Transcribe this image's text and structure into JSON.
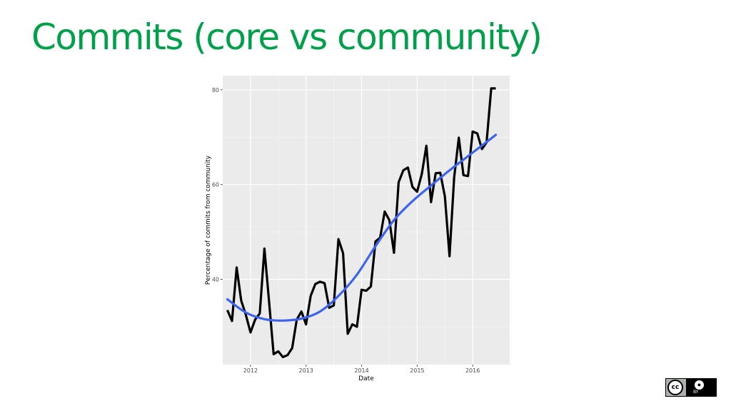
{
  "slide": {
    "title": "Commits (core vs community)"
  },
  "colors": {
    "title": "#00a04a",
    "panel_bg": "#ebebeb",
    "grid_major": "#ffffff",
    "grid_minor": "#f4f4f4",
    "series_line": "#000000",
    "smooth_line": "#3c64ef"
  },
  "license_badge": {
    "cc_text": "cc",
    "by_icon": "person-icon",
    "by_label": "BY"
  },
  "chart_data": {
    "type": "line",
    "xlabel": "Date",
    "ylabel": "Percentage of commits from community",
    "xlim": [
      "2011-07",
      "2016-09"
    ],
    "ylim": [
      22,
      83
    ],
    "x_ticks": [
      "2012",
      "2013",
      "2014",
      "2015",
      "2016"
    ],
    "y_ticks": [
      40,
      60,
      80
    ],
    "grid": true,
    "legend": "none",
    "series": [
      {
        "type": "line",
        "x": [
          "2011-08",
          "2011-09",
          "2011-10",
          "2011-11",
          "2011-12",
          "2012-01",
          "2012-02",
          "2012-03",
          "2012-04",
          "2012-05",
          "2012-06",
          "2012-07",
          "2012-08",
          "2012-09",
          "2012-10",
          "2012-11",
          "2012-12",
          "2013-01",
          "2013-02",
          "2013-03",
          "2013-04",
          "2013-05",
          "2013-06",
          "2013-07",
          "2013-08",
          "2013-09",
          "2013-10",
          "2013-11",
          "2013-12",
          "2014-01",
          "2014-02",
          "2014-03",
          "2014-04",
          "2014-05",
          "2014-06",
          "2014-07",
          "2014-08",
          "2014-09",
          "2014-10",
          "2014-11",
          "2014-12",
          "2015-01",
          "2015-02",
          "2015-03",
          "2015-04",
          "2015-05",
          "2015-06",
          "2015-07",
          "2015-08",
          "2015-09",
          "2015-10",
          "2015-11",
          "2015-12",
          "2016-01",
          "2016-02",
          "2016-03",
          "2016-04",
          "2016-05",
          "2016-06"
        ],
        "y": [
          33.5,
          31.2,
          42.5,
          35.5,
          32.5,
          28.8,
          31.5,
          32.8,
          46.5,
          35.5,
          24.2,
          24.8,
          23.6,
          24.0,
          25.5,
          31.5,
          33.2,
          30.5,
          36.5,
          39.0,
          39.5,
          39.2,
          34.0,
          34.5,
          48.5,
          45.5,
          28.5,
          30.5,
          30.0,
          37.8,
          37.6,
          38.5,
          48.0,
          48.8,
          54.3,
          52.5,
          45.6,
          60.5,
          63.0,
          63.6,
          59.5,
          58.5,
          62.2,
          68.2,
          56.3,
          62.4,
          62.5,
          57.5,
          44.9,
          61.5,
          69.9,
          62.0,
          61.8,
          71.2,
          70.8,
          67.5,
          68.9,
          80.3,
          80.3
        ]
      },
      {
        "type": "smooth",
        "x": [
          "2011-08",
          "2011-12",
          "2012-04",
          "2012-08",
          "2012-12",
          "2013-04",
          "2013-08",
          "2013-12",
          "2014-04",
          "2014-08",
          "2014-12",
          "2015-04",
          "2015-08",
          "2015-12",
          "2016-04",
          "2016-06"
        ],
        "y": [
          35.8,
          33.0,
          31.6,
          31.3,
          31.7,
          33.2,
          36.5,
          41.0,
          47.0,
          52.5,
          56.5,
          59.8,
          63.0,
          66.0,
          69.0,
          70.5
        ]
      }
    ]
  }
}
